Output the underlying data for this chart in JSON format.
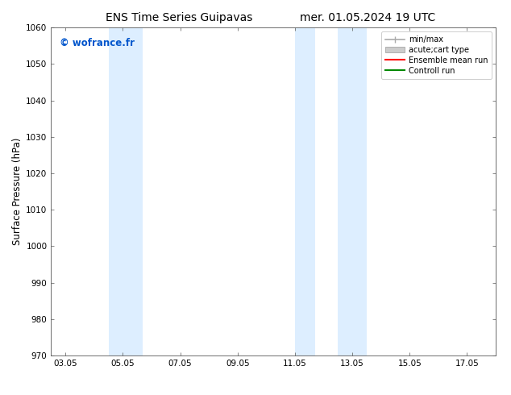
{
  "title_left": "ENS Time Series Guipavas",
  "title_right": "mer. 01.05.2024 19 UTC",
  "ylabel": "Surface Pressure (hPa)",
  "ylim": [
    970,
    1060
  ],
  "yticks": [
    970,
    980,
    990,
    1000,
    1010,
    1020,
    1030,
    1040,
    1050,
    1060
  ],
  "xlim_start": 2.5,
  "xlim_end": 18.0,
  "xtick_labels": [
    "03.05",
    "05.05",
    "07.05",
    "09.05",
    "11.05",
    "13.05",
    "15.05",
    "17.05"
  ],
  "xtick_positions": [
    3,
    5,
    7,
    9,
    11,
    13,
    15,
    17
  ],
  "shaded_regions": [
    {
      "xmin": 4.5,
      "xmax": 5.7,
      "color": "#ddeeff"
    },
    {
      "xmin": 11.0,
      "xmax": 11.7,
      "color": "#ddeeff"
    },
    {
      "xmin": 12.5,
      "xmax": 13.5,
      "color": "#ddeeff"
    }
  ],
  "watermark": "© wofrance.fr",
  "watermark_color": "#0055cc",
  "legend_entries": [
    {
      "label": "min/max",
      "color": "#aaaaaa",
      "lw": 1.2
    },
    {
      "label": "acute;cart type",
      "color": "#cccccc",
      "lw": 8
    },
    {
      "label": "Ensemble mean run",
      "color": "#ff0000",
      "lw": 1.5
    },
    {
      "label": "Controll run",
      "color": "#008800",
      "lw": 1.5
    }
  ],
  "bg_color": "#ffffff",
  "title_fontsize": 10,
  "tick_fontsize": 7.5,
  "ylabel_fontsize": 8.5,
  "watermark_fontsize": 8.5,
  "legend_fontsize": 7
}
